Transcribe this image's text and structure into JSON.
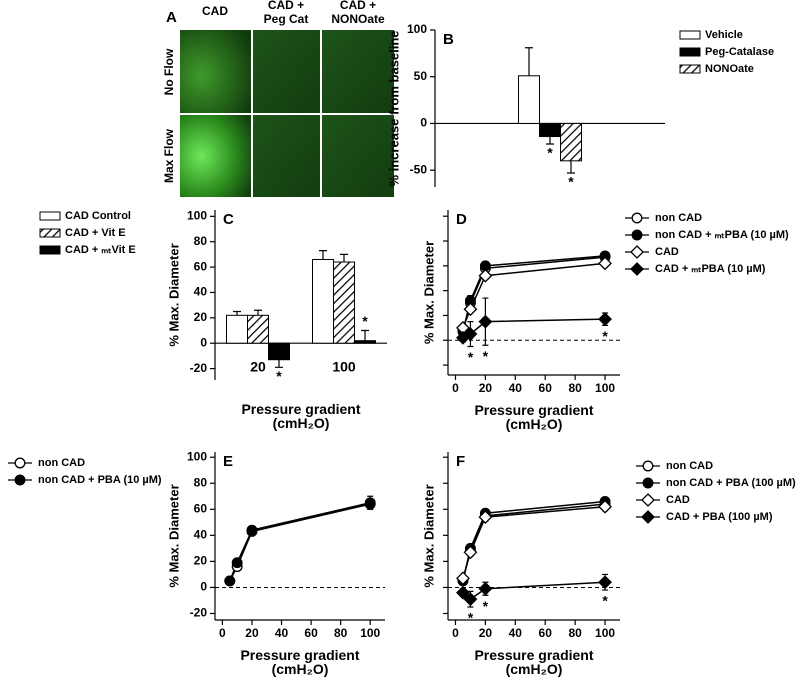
{
  "image_panel": {
    "panel": "A",
    "columns": [
      "CAD",
      "CAD +\nPeg Cat",
      "CAD +\nNONOate"
    ],
    "rows": [
      "No Flow",
      "Max Flow"
    ]
  },
  "chart_data": [
    {
      "panel": "B",
      "type": "bar",
      "ylabel": "% increase from baseline",
      "categories": [
        null
      ],
      "series": [
        {
          "name": "Vehicle",
          "color": "#ffffff",
          "values": [
            51
          ],
          "errors": [
            30
          ],
          "significance": [
            null
          ]
        },
        {
          "name": "Peg-Catalase",
          "color": "#000000",
          "values": [
            -14
          ],
          "errors": [
            8
          ],
          "significance": [
            "*"
          ]
        },
        {
          "name": "NONOate",
          "color": "#ffffff",
          "hatch": true,
          "values": [
            -40
          ],
          "errors": [
            13
          ],
          "significance": [
            "*"
          ]
        }
      ],
      "ylim": [
        -68,
        100
      ],
      "yticks": [
        -50,
        0,
        50,
        100
      ],
      "ytick_labels": true,
      "legend": "right"
    },
    {
      "panel": "C",
      "type": "bar",
      "ylabel": "% Max. Diameter",
      "xlabel": "Pressure gradient\n(cmH₂O)",
      "categories": [
        "20",
        "100"
      ],
      "series": [
        {
          "name": "CAD Control",
          "color": "#ffffff",
          "values": [
            22,
            66
          ],
          "errors": [
            3,
            7
          ],
          "significance": [
            null,
            null
          ]
        },
        {
          "name": "CAD +  Vit E",
          "color": "#ffffff",
          "hatch": true,
          "values": [
            22,
            64
          ],
          "errors": [
            4,
            6
          ],
          "significance": [
            null,
            null
          ]
        },
        {
          "name": "CAD + ₘₜVit E",
          "color": "#000000",
          "values": [
            -13,
            2
          ],
          "errors": [
            6,
            8
          ],
          "significance": [
            "*",
            "*"
          ]
        }
      ],
      "ylim": [
        -29,
        105
      ],
      "yticks": [
        -20,
        0,
        20,
        40,
        60,
        80,
        100
      ],
      "ytick_labels": true,
      "legend": "left"
    },
    {
      "panel": "D",
      "type": "line",
      "ylabel": "% Max. Diameter",
      "xlabel": "Pressure gradient\n(cmH₂O)",
      "x": [
        5,
        10,
        20,
        100
      ],
      "series": [
        {
          "name": "non CAD",
          "color": "#000000",
          "marker": "circle",
          "filled": false,
          "values": [
            8,
            30,
            58,
            67
          ],
          "errors": [
            2,
            2,
            3,
            3
          ]
        },
        {
          "name": "non CAD + ₘₜPBA (10 µM)",
          "color": "#000000",
          "marker": "circle",
          "filled": true,
          "values": [
            7,
            32,
            60,
            68
          ],
          "errors": [
            3,
            4,
            3,
            3
          ]
        },
        {
          "name": "CAD",
          "color": "#000000",
          "marker": "diamond",
          "filled": false,
          "values": [
            10,
            25,
            52,
            62
          ],
          "errors": [
            3,
            3,
            3,
            3
          ]
        },
        {
          "name": "CAD + ₘₜPBA (10 µM)",
          "color": "#000000",
          "marker": "diamond",
          "filled": true,
          "values": [
            2,
            5,
            15,
            17
          ],
          "errors": [
            3,
            10,
            19,
            5
          ]
        }
      ],
      "significance": [
        null,
        "*",
        "*",
        "*"
      ],
      "xlim": [
        -5,
        110
      ],
      "xticks": [
        0,
        20,
        40,
        60,
        80,
        100
      ],
      "ylim": [
        -28,
        105
      ],
      "yticks": [
        -20,
        0,
        20,
        40,
        60,
        80,
        100
      ],
      "ytick_labels": false,
      "zero_line": true,
      "legend": "right"
    },
    {
      "panel": "E",
      "type": "line",
      "ylabel": "% Max. Diameter",
      "xlabel": "Pressure gradient\n(cmH₂O)",
      "x": [
        5,
        10,
        20,
        100
      ],
      "series": [
        {
          "name": "non CAD",
          "color": "#000000",
          "marker": "circle",
          "filled": false,
          "values": [
            5,
            16,
            43,
            64
          ],
          "errors": [
            1,
            2,
            3,
            4
          ]
        },
        {
          "name": "non CAD + PBA (10 µM)",
          "color": "#000000",
          "marker": "circle",
          "filled": true,
          "values": [
            5,
            19,
            44,
            65
          ],
          "errors": [
            1,
            2,
            3,
            5
          ]
        }
      ],
      "xlim": [
        -5,
        110
      ],
      "xticks": [
        0,
        20,
        40,
        60,
        80,
        100
      ],
      "ylim": [
        -25,
        104
      ],
      "yticks": [
        -20,
        0,
        20,
        40,
        60,
        80,
        100
      ],
      "ytick_labels": true,
      "zero_line": true,
      "legend": "left"
    },
    {
      "panel": "F",
      "type": "line",
      "ylabel": "% Max. Diameter",
      "xlabel": "Pressure gradient\n(cmH₂O)",
      "x": [
        5,
        10,
        20,
        100
      ],
      "series": [
        {
          "name": "non CAD",
          "color": "#000000",
          "marker": "circle",
          "filled": false,
          "values": [
            6,
            28,
            55,
            64
          ],
          "errors": [
            2,
            3,
            3,
            3
          ]
        },
        {
          "name": "non CAD + PBA (100 µM)",
          "color": "#000000",
          "marker": "circle",
          "filled": true,
          "values": [
            5,
            30,
            57,
            66
          ],
          "errors": [
            2,
            3,
            3,
            3
          ]
        },
        {
          "name": "CAD",
          "color": "#000000",
          "marker": "diamond",
          "filled": false,
          "values": [
            7,
            27,
            54,
            62
          ],
          "errors": [
            2,
            3,
            3,
            3
          ]
        },
        {
          "name": "CAD + PBA (100 µM)",
          "color": "#000000",
          "marker": "diamond",
          "filled": true,
          "values": [
            -4,
            -9,
            -1,
            4
          ],
          "errors": [
            3,
            6,
            5,
            6
          ]
        }
      ],
      "significance": [
        null,
        "*",
        "*",
        "*"
      ],
      "xlim": [
        -5,
        110
      ],
      "xticks": [
        0,
        20,
        40,
        60,
        80,
        100
      ],
      "ylim": [
        -25,
        104
      ],
      "yticks": [
        -20,
        0,
        20,
        40,
        60,
        80,
        100
      ],
      "ytick_labels": false,
      "zero_line": true,
      "legend": "right"
    }
  ]
}
